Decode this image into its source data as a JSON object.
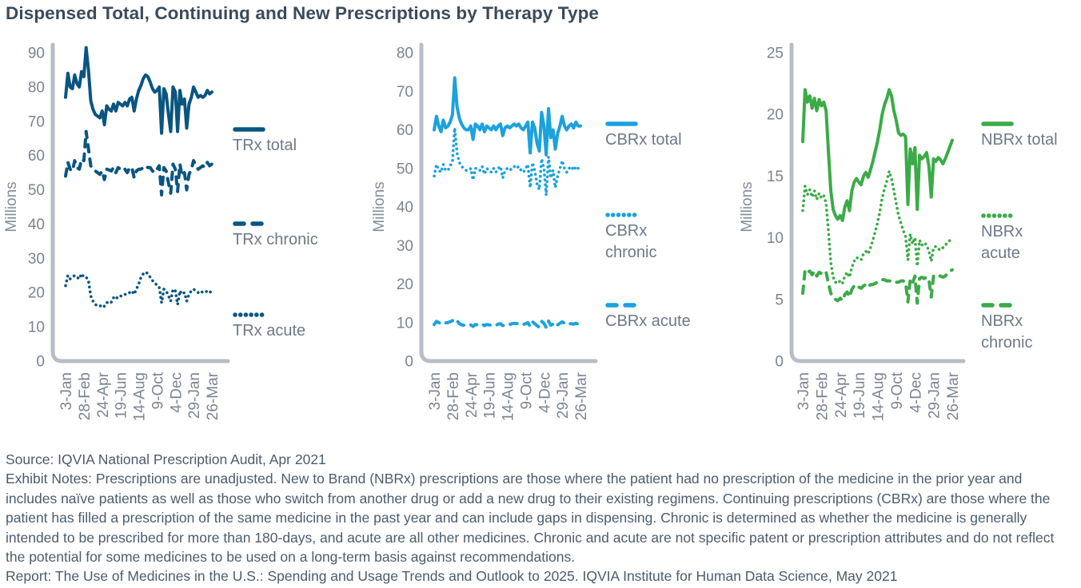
{
  "title": "Dispensed Total, Continuing and New Prescriptions by Therapy Type",
  "footer": {
    "source": "Source: IQVIA National Prescription Audit, Apr 2021",
    "notes": "Exhibit Notes: Prescriptions are unadjusted. New to Brand (NBRx) prescriptions are those where the patient had no prescription of the medicine in the prior year and includes naïve patients as well as those who switch from another drug or add a new drug to their existing regimens. Continuing prescriptions (CBRx) are those where the patient has filled a prescription of the same medicine in the past year and can include gaps in dispensing. Chronic is determined as whether the medicine is generally intended to be prescribed for more than 180-days, and acute are all other medicines. Chronic and acute are not specific patent or prescription attributes and do not reflect the potential for some medicines to be used on a long-term basis against recommendations.",
    "report": "Report: The Use of Medicines in the U.S.: Spending and Usage Trends and Outlook to 2025. IQVIA Institute for Human Data Science, May 2021"
  },
  "colors": {
    "trx": "#0a5580",
    "cbrx": "#1ba2dd",
    "nbrx": "#3aab47",
    "axis": "#b7bdc5",
    "tick_text": "#7b8492",
    "legend_text": "#6e7987",
    "title_text": "#3b4a5c",
    "footer_text": "#4c5c6e"
  },
  "chart_data": [
    {
      "type": "line",
      "ylabel": "Millions",
      "ylim": [
        0,
        90
      ],
      "yticks": [
        0,
        10,
        20,
        30,
        40,
        50,
        60,
        70,
        80,
        90
      ],
      "x_labels": [
        "3-Jan",
        "28-Feb",
        "24-Apr",
        "19-Jun",
        "14-Aug",
        "9-Oct",
        "4-Dec",
        "29-Jan",
        "26-Mar"
      ],
      "x_label_interval": 8,
      "n_points": 65,
      "line_color": "#0a5580",
      "grid": false,
      "legend_position": "right",
      "series": [
        {
          "name": "TRx total",
          "style": "solid",
          "values": [
            77,
            84,
            80,
            79.5,
            83.5,
            81,
            80,
            84.5,
            83,
            91.5,
            85,
            76,
            73.5,
            72,
            71.5,
            71,
            73,
            69,
            74.5,
            73.5,
            73,
            75,
            73,
            75.5,
            75,
            74.5,
            75.5,
            74.5,
            76.5,
            77,
            73,
            76.5,
            79,
            80.5,
            82.5,
            83.5,
            83,
            81.5,
            79.5,
            78.5,
            79,
            80,
            66.5,
            79.5,
            78,
            72,
            67,
            80,
            78.5,
            67,
            79,
            75,
            76.5,
            68,
            75,
            77,
            80,
            78.5,
            77,
            77.5,
            77,
            77.5,
            79,
            78,
            78.5
          ]
        },
        {
          "name": "TRx chronic",
          "style": "dashed",
          "values": [
            54,
            58,
            56,
            55.5,
            58.5,
            56.5,
            56,
            59,
            58.5,
            67,
            62,
            57,
            56,
            55.5,
            55,
            54.5,
            55.5,
            53,
            56,
            55.8,
            55.5,
            56.5,
            55,
            56.5,
            56,
            55.5,
            56,
            55,
            56.5,
            56.5,
            53.5,
            55.5,
            56,
            56,
            56.5,
            57,
            56.5,
            56.5,
            55.5,
            55,
            56,
            57,
            48.5,
            56.5,
            55.5,
            52,
            49,
            57.5,
            56,
            49.5,
            57.5,
            54,
            55,
            50,
            54.5,
            56,
            58.5,
            57,
            56,
            56.5,
            57,
            56.5,
            58,
            57,
            57.5
          ]
        },
        {
          "name": "TRx acute",
          "style": "dotted",
          "values": [
            22,
            25,
            24,
            24.5,
            25,
            24.5,
            24,
            25.5,
            24.5,
            24.5,
            23.5,
            19,
            17.5,
            16.5,
            16.2,
            16,
            16.5,
            16,
            17,
            17.5,
            17.2,
            18.5,
            18,
            19,
            19,
            19,
            19.5,
            19.5,
            20,
            20.5,
            19.5,
            21,
            22.5,
            24.5,
            25.5,
            26,
            25.5,
            24.5,
            23.5,
            23,
            22,
            21.5,
            17,
            21,
            20.5,
            19,
            17.5,
            21,
            20.5,
            16.5,
            20.5,
            19.5,
            20,
            17.5,
            19.5,
            20.5,
            21,
            20.5,
            20,
            20.5,
            20,
            20,
            20.5,
            20,
            20.5
          ]
        }
      ],
      "legend": [
        {
          "label_lines": [
            "TRx total"
          ],
          "style": "solid"
        },
        {
          "label_lines": [
            "TRx chronic"
          ],
          "style": "dashed"
        },
        {
          "label_lines": [
            "TRx acute"
          ],
          "style": "dotted"
        }
      ]
    },
    {
      "type": "line",
      "ylabel": "Millions",
      "ylim": [
        0,
        80
      ],
      "yticks": [
        0,
        10,
        20,
        30,
        40,
        50,
        60,
        70,
        80
      ],
      "x_labels": [
        "3-Jan",
        "28-Feb",
        "24-Apr",
        "19-Jun",
        "14-Aug",
        "9-Oct",
        "4-Dec",
        "29-Jan",
        "26-Mar"
      ],
      "x_label_interval": 8,
      "n_points": 65,
      "line_color": "#1ba2dd",
      "grid": false,
      "legend_position": "right",
      "series": [
        {
          "name": "CBRx total",
          "style": "solid",
          "values": [
            60,
            63.5,
            61,
            59.5,
            62.5,
            60.5,
            61,
            62,
            64,
            73.5,
            66,
            63,
            61.5,
            60.5,
            60,
            60,
            61,
            57.5,
            61.5,
            61,
            60,
            61.5,
            59.5,
            61,
            60.5,
            60,
            61,
            60,
            61,
            61.5,
            58.5,
            60.5,
            61,
            60.5,
            61,
            61.5,
            61,
            61.5,
            60.5,
            60,
            61,
            62,
            54,
            62,
            60.5,
            56.5,
            54.5,
            64.5,
            61,
            53.5,
            65.5,
            58,
            60,
            55,
            59,
            61,
            63.5,
            61,
            60,
            61,
            61.5,
            60.5,
            62,
            61,
            61
          ]
        },
        {
          "name": "CBRx chronic",
          "style": "dotted",
          "values": [
            48,
            51,
            49.5,
            49,
            51,
            49.5,
            49.5,
            50.5,
            52,
            60.5,
            54,
            51.5,
            50.5,
            50,
            49.5,
            49.5,
            50,
            47,
            50,
            50,
            49.5,
            50.5,
            48.5,
            50,
            49.5,
            49,
            50,
            49,
            50,
            50.5,
            47.5,
            49.5,
            50,
            49.5,
            50,
            50.5,
            50,
            50.5,
            49.5,
            49,
            50,
            51,
            45,
            51.5,
            49.5,
            46,
            44.5,
            52.5,
            50,
            43,
            53,
            47.5,
            49.5,
            45,
            48,
            50,
            52,
            50,
            49,
            50,
            50.5,
            49.5,
            50.5,
            50,
            50.5
          ]
        },
        {
          "name": "CBRx acute",
          "style": "dashed",
          "values": [
            9.5,
            10.3,
            10,
            9.8,
            10.2,
            9.9,
            10,
            10.2,
            10.5,
            11,
            10.5,
            9.7,
            9.4,
            9.3,
            9.2,
            9.2,
            9.4,
            9,
            9.5,
            9.4,
            9.3,
            9.6,
            9.2,
            9.5,
            9.4,
            9.3,
            9.5,
            9.3,
            9.6,
            9.7,
            9.2,
            9.5,
            9.6,
            9.5,
            9.7,
            9.8,
            9.7,
            9.8,
            9.6,
            9.5,
            9.7,
            10,
            9,
            10.2,
            9.7,
            9.2,
            8.8,
            10.3,
            9.8,
            8.7,
            10.4,
            9.3,
            9.6,
            8.9,
            9.4,
            9.8,
            10.2,
            9.8,
            9.5,
            9.7,
            9.7,
            9.6,
            9.8,
            9.6,
            9.7
          ]
        }
      ],
      "legend": [
        {
          "label_lines": [
            "CBRx total"
          ],
          "style": "solid"
        },
        {
          "label_lines": [
            "CBRx",
            "chronic"
          ],
          "style": "dotted"
        },
        {
          "label_lines": [
            "CBRx acute"
          ],
          "style": "dashed"
        }
      ]
    },
    {
      "type": "line",
      "ylabel": "Millions",
      "ylim": [
        0,
        25
      ],
      "yticks": [
        0,
        5,
        10,
        15,
        20,
        25
      ],
      "x_labels": [
        "3-Jan",
        "28-Feb",
        "24-Apr",
        "19-Jun",
        "14-Aug",
        "9-Oct",
        "4-Dec",
        "29-Jan",
        "26-Mar"
      ],
      "x_label_interval": 8,
      "n_points": 65,
      "line_color": "#3aab47",
      "grid": false,
      "legend_position": "right",
      "series": [
        {
          "name": "NBRx total",
          "style": "solid",
          "values": [
            17.8,
            22,
            21,
            21.5,
            20.5,
            21.3,
            20.3,
            21.2,
            20.7,
            21,
            20.3,
            17,
            13.8,
            12.3,
            11.8,
            11.5,
            11.8,
            11.4,
            12.5,
            13,
            12.2,
            13.8,
            14.5,
            14.8,
            14.5,
            14.3,
            15,
            15.3,
            14.9,
            15.5,
            16.2,
            17,
            17.8,
            18.8,
            20,
            20.8,
            21.3,
            22,
            21.5,
            20.3,
            19.5,
            18.5,
            18.3,
            18.4,
            18.2,
            12.7,
            17.2,
            16,
            17.3,
            12.3,
            16.7,
            16.4,
            16.6,
            16.9,
            15.8,
            13.3,
            16.4,
            16.2,
            16.5,
            16.3,
            16,
            16.4,
            16.9,
            17.4,
            17.9
          ]
        },
        {
          "name": "NBRx acute",
          "style": "dotted",
          "values": [
            12.2,
            14.2,
            13.5,
            13.9,
            13.3,
            13.8,
            13.1,
            13.6,
            13.2,
            13.4,
            12.8,
            10.5,
            8,
            6.8,
            6.4,
            6.3,
            6.5,
            6.3,
            6.9,
            7.2,
            6.8,
            7.6,
            8.1,
            8.4,
            8.3,
            8.2,
            8.7,
            8.9,
            8.7,
            9.2,
            9.8,
            10.5,
            11.2,
            12.1,
            13.2,
            14,
            14.6,
            15.4,
            14.8,
            13.8,
            12.8,
            11.8,
            11.2,
            10.6,
            10.1,
            8.2,
            10.3,
            9.5,
            10,
            7.7,
            9.8,
            9.4,
            9.6,
            9.4,
            8.9,
            8.1,
            9.2,
            9.3,
            9.1,
            9,
            9.2,
            9.4,
            9.6,
            9.8,
            10
          ]
        },
        {
          "name": "NBRx chronic",
          "style": "dashed",
          "values": [
            5.5,
            7.4,
            7.2,
            7.3,
            7,
            7.3,
            6.9,
            7.2,
            7.1,
            7.3,
            7.2,
            6.3,
            5.5,
            5.2,
            5,
            4.9,
            5.1,
            4.9,
            5.4,
            5.6,
            5.2,
            5.8,
            6.1,
            6.2,
            6,
            5.9,
            6.1,
            6.2,
            6,
            6.2,
            6.2,
            6.3,
            6.4,
            6.5,
            6.6,
            6.6,
            6.5,
            6.5,
            6.5,
            6.4,
            6.4,
            6.4,
            6.5,
            6.5,
            6.4,
            4.8,
            6.6,
            6.3,
            6.9,
            4.7,
            6.7,
            6.8,
            6.7,
            6.8,
            6.6,
            5.2,
            6.9,
            6.8,
            6.9,
            6.9,
            6.8,
            6.9,
            7.1,
            7.3,
            7.4
          ]
        }
      ],
      "legend": [
        {
          "label_lines": [
            "NBRx total"
          ],
          "style": "solid"
        },
        {
          "label_lines": [
            "NBRx",
            "acute"
          ],
          "style": "dotted"
        },
        {
          "label_lines": [
            "NBRx",
            "chronic"
          ],
          "style": "dashed"
        }
      ]
    }
  ]
}
